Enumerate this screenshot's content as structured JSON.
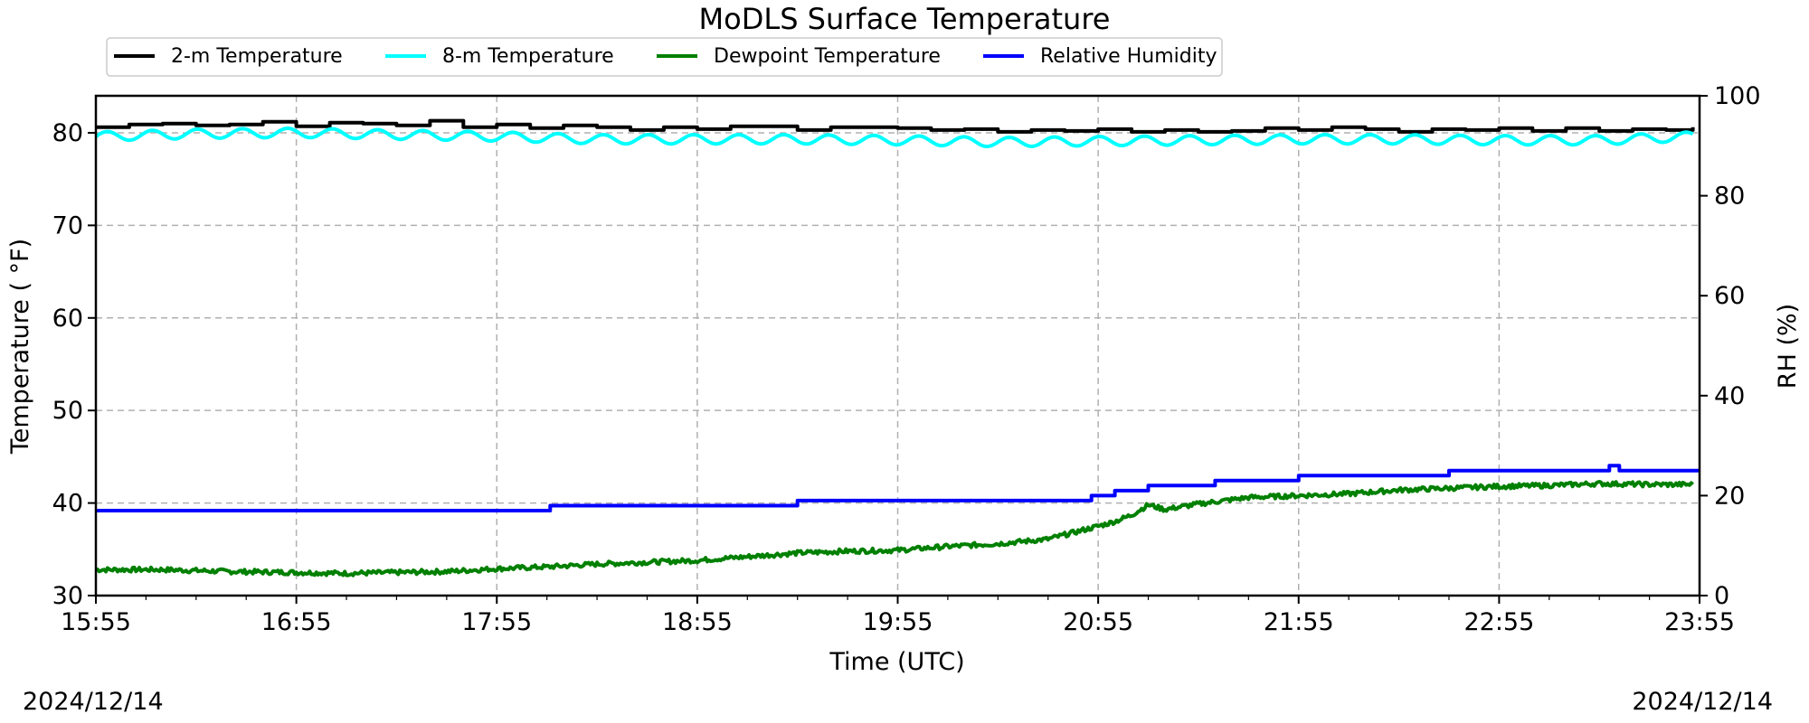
{
  "chart_data": {
    "type": "line",
    "title": "MoDLS Surface Temperature",
    "xlabel": "Time (UTC)",
    "ylabel": "Temperature ($^\\circ$F)",
    "ylabel_display": "Temperature ( °F)",
    "y2label": "RH (%)",
    "date_left": "2024/12/14",
    "date_right": "2024/12/14",
    "xlim_minutes": [
      0,
      480
    ],
    "ylim": [
      30,
      84
    ],
    "y2lim": [
      0,
      100
    ],
    "x_ticks": [
      {
        "minute": 0,
        "label": "15:55"
      },
      {
        "minute": 60,
        "label": "16:55"
      },
      {
        "minute": 120,
        "label": "17:55"
      },
      {
        "minute": 180,
        "label": "18:55"
      },
      {
        "minute": 240,
        "label": "19:55"
      },
      {
        "minute": 300,
        "label": "20:55"
      },
      {
        "minute": 360,
        "label": "21:55"
      },
      {
        "minute": 420,
        "label": "22:55"
      },
      {
        "minute": 480,
        "label": "23:55"
      }
    ],
    "y_ticks": [
      30,
      40,
      50,
      60,
      70,
      80
    ],
    "y2_ticks": [
      0,
      20,
      40,
      60,
      80,
      100
    ],
    "grid": true,
    "legend_position": "top-left",
    "series": [
      {
        "name": "2-m Temperature",
        "color": "#000000",
        "axis": "left",
        "step": true,
        "x": [
          0,
          10,
          20,
          30,
          40,
          50,
          60,
          70,
          80,
          90,
          100,
          110,
          120,
          130,
          140,
          150,
          160,
          170,
          180,
          190,
          200,
          210,
          220,
          230,
          240,
          250,
          260,
          270,
          280,
          290,
          300,
          310,
          320,
          330,
          340,
          350,
          360,
          370,
          380,
          390,
          400,
          410,
          420,
          430,
          440,
          450,
          460,
          470,
          478
        ],
        "y": [
          80.6,
          80.9,
          81.0,
          80.8,
          80.9,
          81.2,
          80.7,
          81.1,
          81.0,
          80.8,
          81.3,
          80.6,
          80.9,
          80.5,
          80.8,
          80.6,
          80.3,
          80.6,
          80.4,
          80.7,
          80.7,
          80.3,
          80.6,
          80.6,
          80.5,
          80.3,
          80.4,
          80.1,
          80.3,
          80.2,
          80.4,
          80.1,
          80.3,
          80.1,
          80.2,
          80.5,
          80.3,
          80.6,
          80.4,
          80.1,
          80.4,
          80.3,
          80.5,
          80.2,
          80.5,
          80.2,
          80.4,
          80.3,
          80.6
        ]
      },
      {
        "name": "8-m Temperature",
        "color": "#00ffff",
        "axis": "left",
        "wave": {
          "period": 13.5,
          "amplitude": 0.5
        },
        "x": [
          0,
          30,
          60,
          90,
          120,
          150,
          180,
          210,
          240,
          270,
          300,
          330,
          360,
          390,
          420,
          450,
          478
        ],
        "y": [
          79.6,
          79.9,
          80.0,
          79.8,
          79.6,
          79.3,
          79.3,
          79.3,
          79.2,
          79.0,
          79.1,
          79.2,
          79.3,
          79.3,
          79.2,
          79.2,
          79.6
        ]
      },
      {
        "name": "Dewpoint Temperature",
        "color": "#008000",
        "axis": "left",
        "jitter": 0.25,
        "x": [
          0,
          20,
          40,
          60,
          75,
          90,
          105,
          120,
          135,
          150,
          165,
          180,
          195,
          210,
          225,
          240,
          255,
          270,
          285,
          300,
          305,
          310,
          315,
          320,
          325,
          330,
          345,
          360,
          375,
          390,
          405,
          420,
          435,
          450,
          465,
          478
        ],
        "y": [
          32.8,
          32.8,
          32.6,
          32.5,
          32.4,
          32.5,
          32.6,
          32.9,
          33.1,
          33.4,
          33.6,
          33.8,
          34.2,
          34.6,
          34.8,
          34.9,
          35.3,
          35.6,
          36.1,
          37.5,
          38.0,
          38.7,
          39.8,
          39.3,
          39.6,
          39.9,
          40.6,
          40.8,
          41.0,
          41.4,
          41.6,
          41.8,
          41.9,
          42.1,
          42.0,
          42.0
        ]
      },
      {
        "name": "Relative Humidity",
        "color": "#0000ff",
        "axis": "right",
        "step": true,
        "x": [
          0,
          120,
          136,
          140,
          200,
          210,
          255,
          298,
          305,
          310,
          315,
          335,
          360,
          405,
          450,
          453,
          456,
          480
        ],
        "y": [
          17.0,
          17.0,
          18.0,
          18.0,
          18.0,
          19.0,
          19.0,
          20.0,
          21.0,
          21.0,
          22.0,
          23.0,
          24.0,
          25.0,
          25.0,
          26.0,
          25.0,
          25.0
        ]
      }
    ]
  }
}
